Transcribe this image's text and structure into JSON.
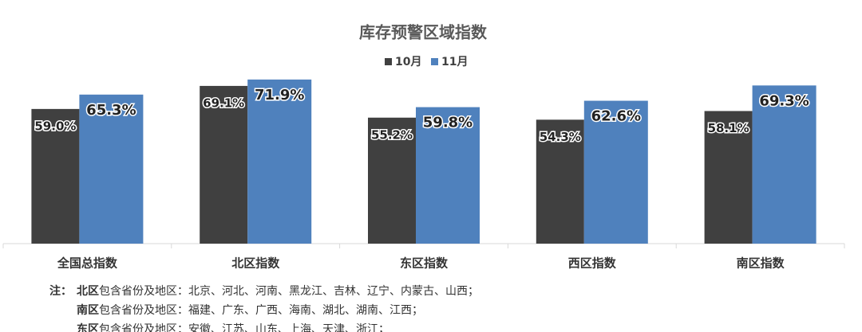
{
  "chart_data": {
    "type": "bar",
    "title": "库存预警区域指数",
    "categories": [
      "全国总指数",
      "北区指数",
      "东区指数",
      "西区指数",
      "南区指数"
    ],
    "series": [
      {
        "name": "10月",
        "color": "#404040",
        "values": [
          59.0,
          69.1,
          55.2,
          54.3,
          58.1
        ],
        "value_labels": [
          "59.0%",
          "69.1%",
          "55.2%",
          "54.3%",
          "58.1%"
        ]
      },
      {
        "name": "11月",
        "color": "#4f81bd",
        "values": [
          65.3,
          71.9,
          59.8,
          62.6,
          69.3
        ],
        "value_labels": [
          "65.3%",
          "71.9%",
          "59.8%",
          "62.6%",
          "69.3%"
        ]
      }
    ],
    "ylim": [
      0,
      75
    ]
  },
  "notes": {
    "prefix": "注：",
    "lines": [
      {
        "region": "北区",
        "text": "包含省份及地区：北京、河北、河南、黑龙江、吉林、辽宁、内蒙古、山西；"
      },
      {
        "region": "南区",
        "text": "包含省份及地区：福建、广东、广西、海南、湖北、湖南、江西；"
      },
      {
        "region": "东区",
        "text": "包含省份及地区：安徽、江苏、山东、上海、天津、浙江；"
      }
    ]
  }
}
